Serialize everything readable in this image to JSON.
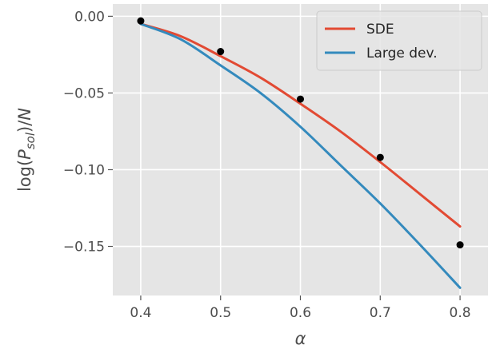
{
  "chart_data": {
    "type": "line",
    "style": "ggplot",
    "xlabel": "α",
    "ylabel": "log(P_sol)/N",
    "ylabel_parts": {
      "pre": "log(",
      "main": "P",
      "sub": "sol",
      "post": ")/",
      "tail": "N"
    },
    "xlim": [
      0.365,
      0.835
    ],
    "ylim": [
      -0.182,
      0.008
    ],
    "xticks": [
      0.4,
      0.5,
      0.6,
      0.7,
      0.8
    ],
    "xtick_labels": [
      "0.4",
      "0.5",
      "0.6",
      "0.7",
      "0.8"
    ],
    "yticks": [
      0.0,
      -0.05,
      -0.1,
      -0.15
    ],
    "ytick_labels": [
      "0.00",
      "−0.05",
      "−0.10",
      "−0.15"
    ],
    "grid": true,
    "legend_position": "top-right",
    "series": [
      {
        "name": "SDE",
        "color": "#E24A33",
        "x": [
          0.4,
          0.45,
          0.5,
          0.55,
          0.6,
          0.65,
          0.7,
          0.75,
          0.8
        ],
        "y": [
          -0.005,
          -0.013,
          -0.026,
          -0.04,
          -0.057,
          -0.075,
          -0.095,
          -0.116,
          -0.137
        ]
      },
      {
        "name": "Large dev.",
        "color": "#348ABD",
        "x": [
          0.4,
          0.45,
          0.5,
          0.55,
          0.6,
          0.65,
          0.7,
          0.75,
          0.8
        ],
        "y": [
          -0.005,
          -0.015,
          -0.032,
          -0.05,
          -0.072,
          -0.097,
          -0.122,
          -0.149,
          -0.177
        ]
      }
    ],
    "points": {
      "color": "#000000",
      "x": [
        0.4,
        0.5,
        0.6,
        0.7,
        0.8
      ],
      "y": [
        -0.003,
        -0.023,
        -0.054,
        -0.092,
        -0.149
      ]
    }
  }
}
